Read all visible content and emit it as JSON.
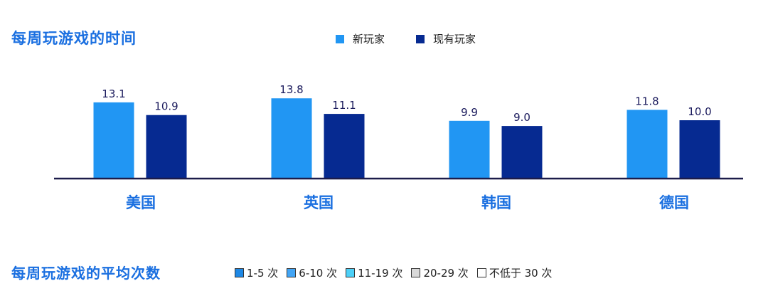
{
  "header": {
    "title": "每周玩游戏的时间"
  },
  "colors": {
    "new": "#2196f3",
    "existing": "#062a91",
    "axis": "#1c1c4a",
    "label": "#1a1a5c",
    "category": "#1a6fe0"
  },
  "chart_data": {
    "type": "bar",
    "categories": [
      "美国",
      "英国",
      "韩国",
      "德国"
    ],
    "series": [
      {
        "name": "新玩家",
        "values": [
          13.1,
          13.8,
          9.9,
          11.8
        ]
      },
      {
        "name": "现有玩家",
        "values": [
          10.9,
          11.1,
          9.0,
          10.0
        ]
      }
    ],
    "value_labels": [
      [
        "13.1",
        "10.9"
      ],
      [
        "13.8",
        "11.1"
      ],
      [
        "9.9",
        "9.0"
      ],
      [
        "11.8",
        "10.0"
      ]
    ],
    "ylim": [
      0,
      16
    ],
    "grid": false,
    "legend_position": "top"
  },
  "footer": {
    "title": "每周玩游戏的平均次数",
    "legend": [
      {
        "label": "1-5 次",
        "color": "#1e88e5"
      },
      {
        "label": "6-10 次",
        "color": "#42a5f5"
      },
      {
        "label": "11-19 次",
        "color": "#4dd0f7"
      },
      {
        "label": "20-29 次",
        "color": "#d9d9d9"
      },
      {
        "label": "不低于 30 次",
        "color": "#ffffff"
      }
    ]
  }
}
